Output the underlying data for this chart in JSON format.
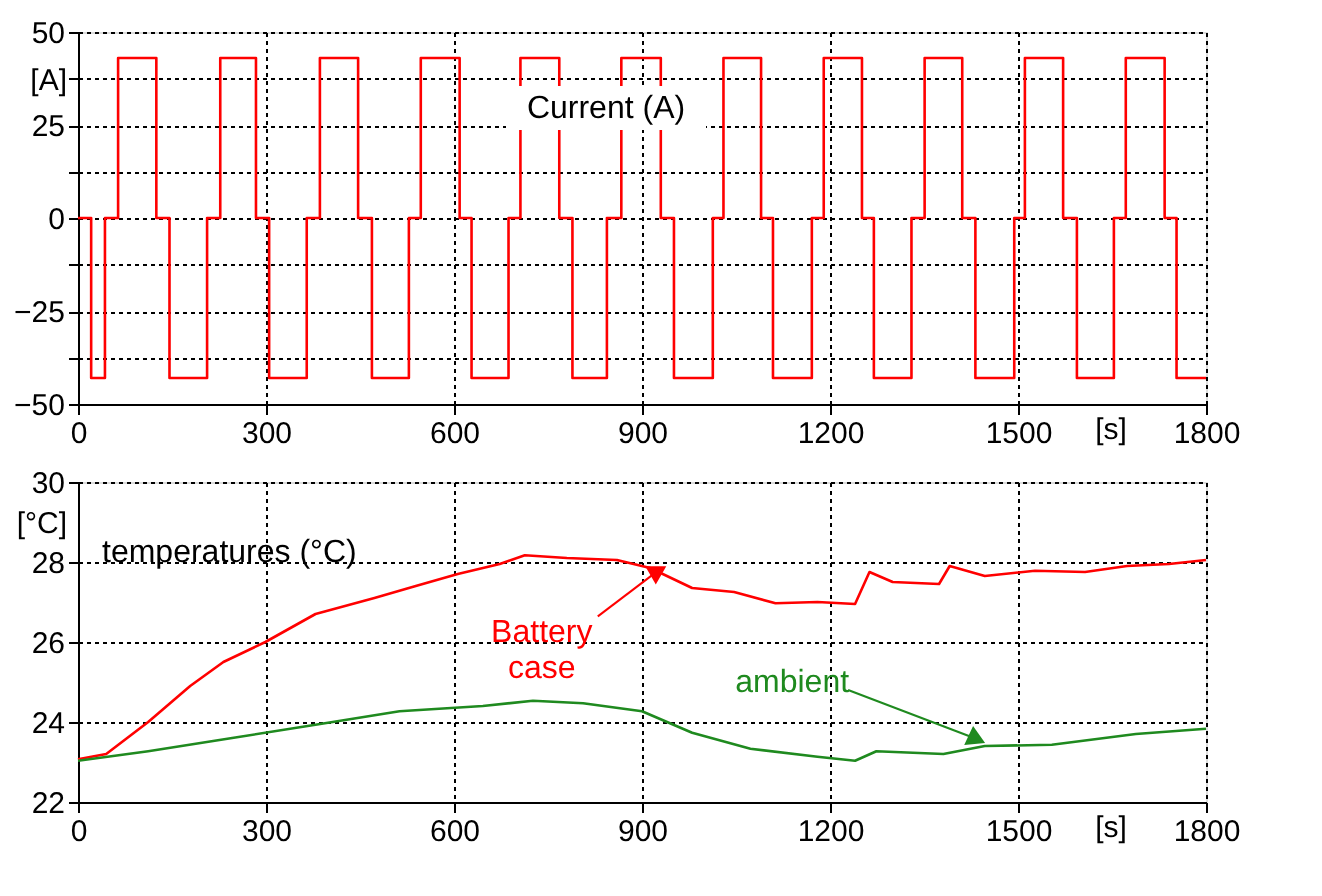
{
  "chart_data": [
    {
      "type": "step",
      "ylabel": "[A]",
      "xlabel": "[s]",
      "annotations": [
        "Current (A)"
      ],
      "xlim": [
        0,
        1800
      ],
      "xticks": [
        0,
        300,
        600,
        900,
        1200,
        1500,
        1800
      ],
      "ylim": [
        -50,
        50
      ],
      "yticks": [
        50,
        {
          "value": 37.5,
          "label": null
        },
        25,
        {
          "value": 12.5,
          "label": null
        },
        0,
        {
          "value": -12.5,
          "label": null
        },
        -25,
        {
          "value": -37.5,
          "label": null
        },
        -50
      ],
      "grid": true,
      "line_style": "solid",
      "marker": "none",
      "series": [
        {
          "color": "#ff0000",
          "x": [
            0,
            21,
            43,
            64,
            125,
            146,
            206,
            227,
            284,
            305,
            365,
            386,
            447,
            469,
            528,
            547,
            609,
            628,
            687,
            706,
            768,
            789,
            844,
            867,
            930,
            951,
            1013,
            1030,
            1090,
            1109,
            1171,
            1190,
            1251,
            1270,
            1330,
            1351,
            1411,
            1432,
            1494,
            1511,
            1572,
            1594,
            1653,
            1672,
            1734,
            1753,
            1800
          ],
          "values": [
            0,
            -43,
            0,
            43,
            0,
            -43,
            0,
            43,
            0,
            -43,
            0,
            43,
            0,
            -43,
            0,
            43,
            0,
            -43,
            0,
            43,
            0,
            -43,
            0,
            43,
            0,
            -43,
            0,
            43,
            0,
            -43,
            0,
            43,
            0,
            -43,
            0,
            43,
            0,
            -43,
            0,
            43,
            0,
            -43,
            0,
            43,
            0,
            -43,
            -43
          ]
        }
      ]
    },
    {
      "type": "line",
      "ylabel": "[°C]",
      "xlabel": "[s]",
      "annotations": [
        "temperatures (°C)",
        {
          "text": "Battery case",
          "x": 922,
          "y": 27.74
        },
        {
          "text": "ambient",
          "x": 1430,
          "y": 23.6
        }
      ],
      "xlim": [
        0,
        1800
      ],
      "xticks": [
        0,
        300,
        600,
        900,
        1200,
        1500,
        1800
      ],
      "ylim": [
        22,
        30
      ],
      "yticks": [
        22,
        24,
        26,
        28,
        30
      ],
      "grid": true,
      "line_style": "solid",
      "marker": "none",
      "series": [
        {
          "color": "#ff0000",
          "x": [
            0,
            45,
            112,
            179,
            232,
            299,
            379,
            473,
            539,
            606,
            673,
            713,
            780,
            860,
            913,
            980,
            1047,
            1113,
            1180,
            1240,
            1263,
            1300,
            1374,
            1391,
            1447,
            1527,
            1607,
            1674,
            1741,
            1800
          ],
          "values": [
            23.07,
            23.2,
            24.0,
            24.9,
            25.5,
            26.0,
            26.7,
            27.1,
            27.4,
            27.7,
            27.95,
            28.17,
            28.1,
            28.05,
            27.85,
            27.35,
            27.25,
            26.97,
            27.0,
            26.95,
            27.75,
            27.5,
            27.45,
            27.9,
            27.65,
            27.78,
            27.75,
            27.9,
            27.95,
            28.05
          ]
        },
        {
          "color": "#1f8a1f",
          "x": [
            0,
            112,
            246,
            379,
            513,
            646,
            726,
            806,
            900,
            980,
            1073,
            1180,
            1240,
            1274,
            1381,
            1447,
            1554,
            1688,
            1800
          ],
          "values": [
            23.03,
            23.27,
            23.6,
            23.93,
            24.27,
            24.4,
            24.53,
            24.47,
            24.27,
            23.73,
            23.33,
            23.13,
            23.03,
            23.27,
            23.2,
            23.4,
            23.43,
            23.7,
            23.83
          ]
        }
      ]
    }
  ]
}
